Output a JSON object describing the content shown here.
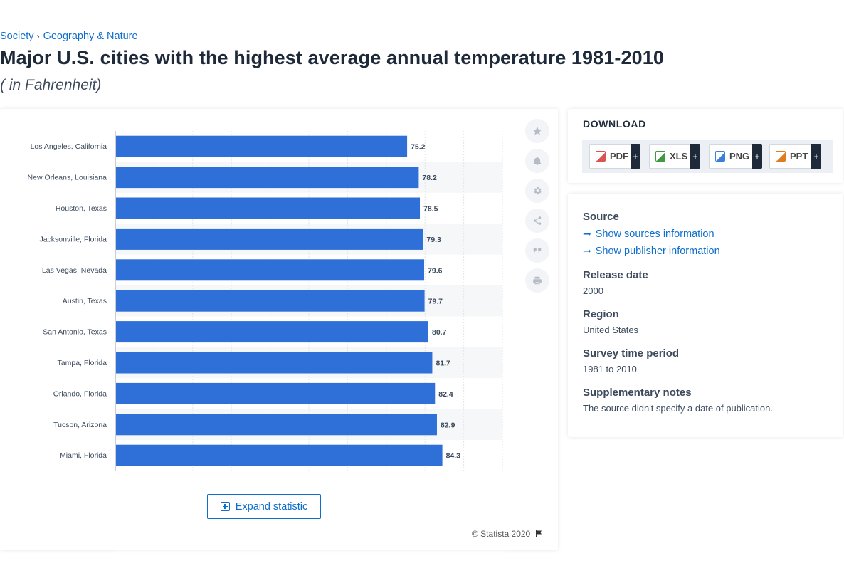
{
  "breadcrumb": {
    "items": [
      "Society",
      "Geography & Nature"
    ],
    "separator": "›"
  },
  "title": "Major U.S. cities with the highest average annual temperature 1981-2010",
  "subtitle": "( in Fahrenheit)",
  "chart_data": {
    "type": "bar",
    "orientation": "horizontal",
    "categories": [
      "Los Angeles, California",
      "New Orleans, Louisiana",
      "Houston, Texas",
      "Jacksonville, Florida",
      "Las Vegas, Nevada",
      "Austin, Texas",
      "San Antonio, Texas",
      "Tampa, Florida",
      "Orlando, Florida",
      "Tucson, Arizona",
      "Miami, Florida"
    ],
    "values": [
      75.2,
      78.2,
      78.5,
      79.3,
      79.6,
      79.7,
      80.7,
      81.7,
      82.4,
      82.9,
      84.3
    ],
    "value_labels": [
      "75.2",
      "78.2",
      "78.5",
      "79.3",
      "79.6",
      "79.7",
      "80.7",
      "81.7",
      "82.4",
      "82.9",
      "84.3"
    ],
    "xlim": [
      0,
      100
    ],
    "grid": true,
    "bar_color": "#2f6fd8"
  },
  "toolbar": {
    "icons": [
      "star-icon",
      "bell-icon",
      "gear-icon",
      "share-icon",
      "quote-icon",
      "print-icon"
    ]
  },
  "expand_label": "Expand statistic",
  "copyright": "© Statista 2020",
  "download": {
    "heading": "DOWNLOAD",
    "plus": "+",
    "formats": [
      {
        "label": "PDF",
        "color": "#d9534f"
      },
      {
        "label": "XLS",
        "color": "#3c9a40"
      },
      {
        "label": "PNG",
        "color": "#3b7fd6"
      },
      {
        "label": "PPT",
        "color": "#e07b22"
      }
    ]
  },
  "info": {
    "source_label": "Source",
    "show_sources": "Show sources information",
    "show_publisher": "Show publisher information",
    "release_label": "Release date",
    "release_value": "2000",
    "region_label": "Region",
    "region_value": "United States",
    "survey_label": "Survey time period",
    "survey_value": "1981 to 2010",
    "notes_label": "Supplementary notes",
    "notes_value": "The source didn't specify a date of publication."
  }
}
